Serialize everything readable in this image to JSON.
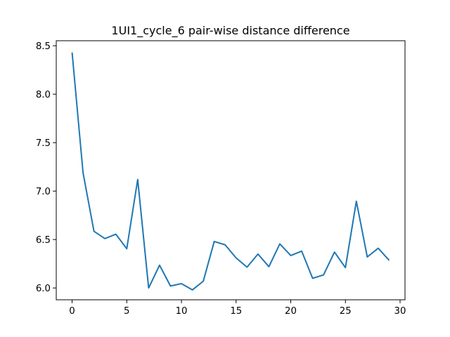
{
  "chart_data": {
    "type": "line",
    "title": "1UI1_cycle_6 pair-wise distance difference",
    "xlabel": "",
    "ylabel": "",
    "xlim": [
      -1.45,
      30.45
    ],
    "ylim": [
      5.878,
      8.552
    ],
    "x_ticks": [
      0,
      5,
      10,
      15,
      20,
      25,
      30
    ],
    "y_ticks": [
      6.0,
      6.5,
      7.0,
      7.5,
      8.0,
      8.5
    ],
    "grid": false,
    "line_color": "#1f77b4",
    "series": [
      {
        "x": [
          0,
          1,
          2,
          3,
          4,
          5,
          6,
          7,
          8,
          9,
          10,
          11,
          12,
          13,
          14,
          15,
          16,
          17,
          18,
          19,
          20,
          21,
          22,
          23,
          24,
          25,
          26,
          27,
          28,
          29
        ],
        "values": [
          8.43,
          7.19,
          6.585,
          6.51,
          6.555,
          6.405,
          7.12,
          6.0,
          6.235,
          6.02,
          6.045,
          5.98,
          6.07,
          6.48,
          6.445,
          6.31,
          6.215,
          6.35,
          6.22,
          6.455,
          6.335,
          6.38,
          6.1,
          6.135,
          6.37,
          6.21,
          6.895,
          6.32,
          6.41,
          6.285
        ]
      }
    ]
  }
}
